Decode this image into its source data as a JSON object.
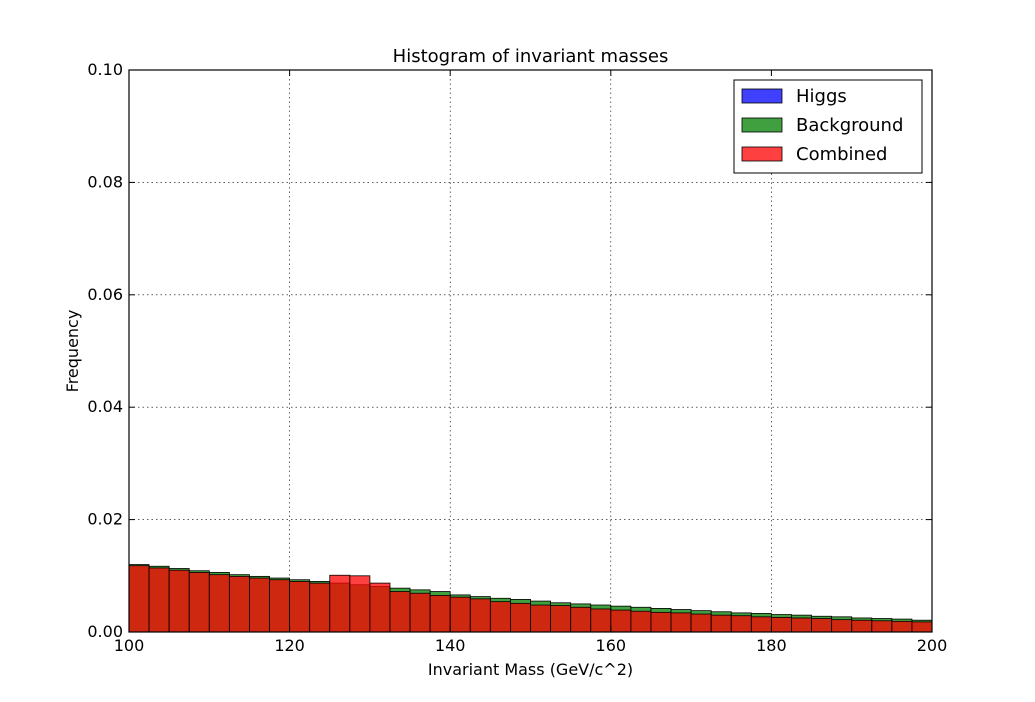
{
  "chart_data": {
    "type": "bar",
    "title": "Histogram of invariant masses",
    "xlabel": "Invariant Mass (GeV/c^2)",
    "ylabel": "Frequency",
    "xlim": [
      100,
      200
    ],
    "ylim": [
      0,
      0.1
    ],
    "xticks": [
      100,
      120,
      140,
      160,
      180,
      200
    ],
    "yticks": [
      0.0,
      0.02,
      0.04,
      0.06,
      0.08,
      0.1
    ],
    "xtick_labels": [
      "100",
      "120",
      "140",
      "160",
      "180",
      "200"
    ],
    "ytick_labels": [
      "0.00",
      "0.02",
      "0.04",
      "0.06",
      "0.08",
      "0.10"
    ],
    "grid": true,
    "legend": {
      "position": "top-right",
      "entries": [
        "Higgs",
        "Background",
        "Combined"
      ]
    },
    "series": [
      {
        "name": "Higgs",
        "color": "#0000ff",
        "opacity": 0.75,
        "bin_start": 100,
        "bin_width": 0.625,
        "values": [
          0.0,
          0.0,
          0.0,
          0.0,
          0.0,
          0.0,
          0.0,
          0.0,
          0.0,
          0.0,
          0.0,
          0.0,
          0.0,
          0.0,
          0.0,
          0.0,
          0.0,
          0.0,
          0.0,
          0.0,
          0.0,
          0.0,
          0.0,
          0.0,
          0.0,
          0.0,
          0.0,
          0.0,
          0.0,
          0.0,
          0.0,
          0.0,
          0.0,
          0.0,
          0.0,
          0.0,
          0.0,
          0.0,
          0.0,
          0.0,
          0.0,
          0.0,
          0.0,
          0.0,
          0.0,
          0.0,
          0.0,
          0.0,
          0.0,
          0.0,
          0.0,
          0.0,
          0.0,
          0.0,
          0.0,
          0.0,
          0.0,
          0.0,
          0.0,
          0.0,
          0.0,
          0.0,
          0.0,
          0.0,
          0.0,
          0.0,
          0.0,
          0.0,
          0.0,
          0.0,
          0.0,
          0.0,
          0.0,
          0.0,
          0.0,
          0.0,
          0.0,
          0.0,
          0.0,
          0.0,
          0.0,
          0.0,
          0.0,
          0.0,
          0.0,
          0.0,
          0.0,
          0.0,
          0.0,
          0.0,
          0.0,
          0.0,
          0.0,
          0.0,
          0.0,
          0.0,
          0.0,
          0.0,
          0.0,
          0.0,
          0.0,
          0.0,
          0.0,
          0.0,
          0.0,
          0.0,
          0.0,
          0.0,
          0.0,
          0.0,
          0.0,
          0.0,
          0.0,
          0.0,
          0.0,
          0.0,
          0.0,
          0.0,
          0.0,
          0.0,
          0.0,
          0.0,
          0.0,
          0.0,
          0.0,
          0.0,
          0.0,
          0.0
        ]
      },
      {
        "name": "Background",
        "color": "#008000",
        "opacity": 0.75,
        "bin_start": 100,
        "bin_width": 2.5,
        "values": [
          0.012,
          0.0117,
          0.0113,
          0.0109,
          0.0106,
          0.0102,
          0.0099,
          0.0096,
          0.0093,
          0.009,
          0.0087,
          0.0084,
          0.0081,
          0.0078,
          0.0075,
          0.0072,
          0.0066,
          0.0063,
          0.006,
          0.0058,
          0.0055,
          0.0052,
          0.005,
          0.0048,
          0.0046,
          0.0044,
          0.0042,
          0.004,
          0.0038,
          0.0036,
          0.0034,
          0.0033,
          0.0031,
          0.003,
          0.0028,
          0.0027,
          0.0025,
          0.0024,
          0.0023,
          0.0021
        ]
      },
      {
        "name": "Combined",
        "color": "#ff0000",
        "opacity": 0.75,
        "bin_start": 100,
        "bin_width": 2.5,
        "values": [
          0.0118,
          0.0114,
          0.011,
          0.0106,
          0.0102,
          0.0099,
          0.0096,
          0.0093,
          0.009,
          0.0087,
          0.0101,
          0.01,
          0.0087,
          0.0072,
          0.0069,
          0.0065,
          0.0062,
          0.0059,
          0.0054,
          0.0051,
          0.0048,
          0.0047,
          0.0044,
          0.0041,
          0.0039,
          0.0037,
          0.0035,
          0.0034,
          0.0032,
          0.003,
          0.0029,
          0.0027,
          0.0026,
          0.0025,
          0.0024,
          0.0022,
          0.0021,
          0.002,
          0.0019,
          0.0018
        ]
      }
    ]
  }
}
